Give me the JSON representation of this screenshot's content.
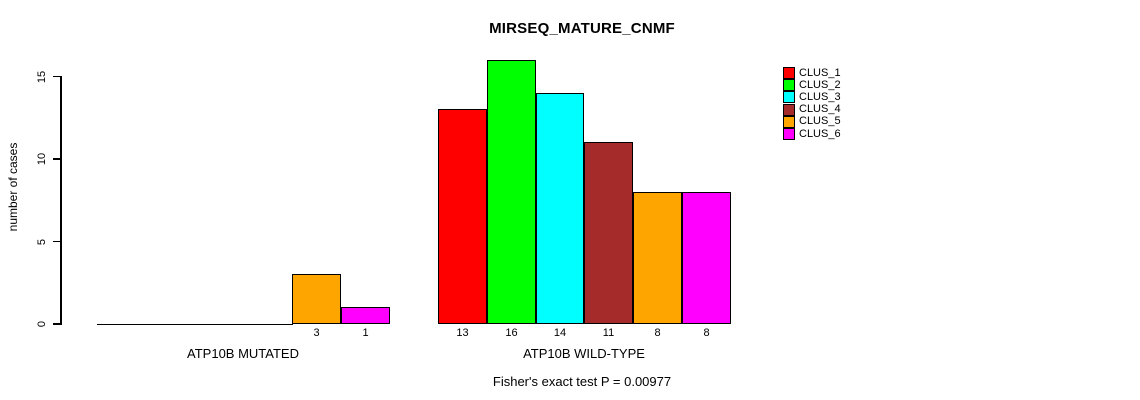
{
  "page": {
    "title": "MIRSEQ_MATURE_CNMF",
    "footer": "Fisher's exact test P = 0.00977"
  },
  "chart_data": {
    "type": "bar",
    "title": "MIRSEQ_MATURE_CNMF",
    "ylabel": "number of cases",
    "xlabel": "",
    "ylim": [
      0,
      16.5
    ],
    "yticks": [
      0,
      5,
      10,
      15
    ],
    "grid": false,
    "legend_position": "top-right",
    "bar_outline_color": "#000000",
    "background_color": "#ffffff",
    "series": [
      {
        "name": "CLUS_1",
        "color": "#FF0000"
      },
      {
        "name": "CLUS_2",
        "color": "#00FF00"
      },
      {
        "name": "CLUS_3",
        "color": "#00FFFF"
      },
      {
        "name": "CLUS_4",
        "color": "#A52A2A"
      },
      {
        "name": "CLUS_5",
        "color": "#FFA500"
      },
      {
        "name": "CLUS_6",
        "color": "#FF00FF"
      }
    ],
    "groups": [
      {
        "label": "ATP10B MUTATED",
        "values": [
          0,
          0,
          0,
          0,
          3,
          1
        ]
      },
      {
        "label": "ATP10B WILD-TYPE",
        "values": [
          13,
          16,
          14,
          11,
          8,
          8
        ]
      }
    ],
    "value_labels": {
      "ATP10B MUTATED": [
        "3",
        "1"
      ],
      "ATP10B WILD-TYPE": [
        "13",
        "16",
        "14",
        "11",
        "8",
        "8"
      ]
    },
    "annotation": "Fisher's exact test P = 0.00977"
  }
}
